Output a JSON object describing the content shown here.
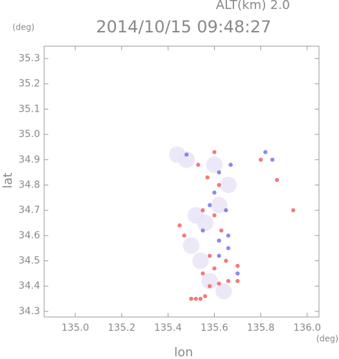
{
  "chart_data": {
    "type": "scatter",
    "title": "2014/10/15 09:48:27",
    "altitude_label": "ALT(km)  2.0",
    "y_unit": "(deg)",
    "x_unit": "(deg)",
    "xlabel": "lon",
    "ylabel": "lat",
    "xlim": [
      134.866,
      136.051
    ],
    "ylim": [
      34.278,
      35.349
    ],
    "xticks": [
      {
        "value": 135.0,
        "label": "135.0"
      },
      135.2,
      135.4,
      135.6,
      135.8,
      {
        "value": 136.0,
        "label": "136.0"
      }
    ],
    "yticks": [
      34.3,
      34.4,
      34.5,
      34.6,
      34.7,
      34.8,
      34.9,
      {
        "value": 35.0,
        "label": "35.0"
      },
      35.1,
      35.2,
      35.3
    ],
    "series": [
      {
        "color": "#e8e2f6",
        "x": [
          135.52,
          135.56,
          135.5,
          135.58,
          135.64,
          135.48,
          135.6,
          135.66,
          135.54,
          135.62,
          135.44
        ],
        "y": [
          34.68,
          34.65,
          34.56,
          34.42,
          34.38,
          34.9,
          34.88,
          34.8,
          34.5,
          34.72,
          34.92
        ]
      },
      {
        "color": "#f06464",
        "x": [
          135.5,
          135.52,
          135.54,
          135.56,
          135.58,
          135.62,
          135.66,
          135.7,
          135.55,
          135.6,
          135.65,
          135.7,
          135.58,
          135.45,
          135.47,
          135.55,
          135.6,
          135.63,
          135.57,
          135.62,
          135.8,
          135.94,
          135.87,
          135.6,
          135.53
        ],
        "y": [
          34.35,
          34.35,
          34.35,
          34.36,
          34.4,
          34.41,
          34.42,
          34.42,
          34.45,
          34.47,
          34.5,
          34.48,
          34.52,
          34.64,
          34.6,
          34.7,
          34.68,
          34.62,
          34.83,
          34.8,
          34.9,
          34.7,
          34.82,
          34.93,
          34.88
        ]
      },
      {
        "color": "#7474f0",
        "x": [
          135.62,
          135.66,
          135.58,
          135.65,
          135.62,
          135.67,
          135.82,
          135.85,
          135.7,
          135.62,
          135.55,
          135.6,
          135.48,
          135.66
        ],
        "y": [
          34.58,
          34.6,
          34.72,
          34.7,
          34.85,
          34.88,
          34.93,
          34.9,
          34.45,
          34.52,
          34.62,
          34.77,
          34.92,
          34.55
        ]
      }
    ]
  }
}
